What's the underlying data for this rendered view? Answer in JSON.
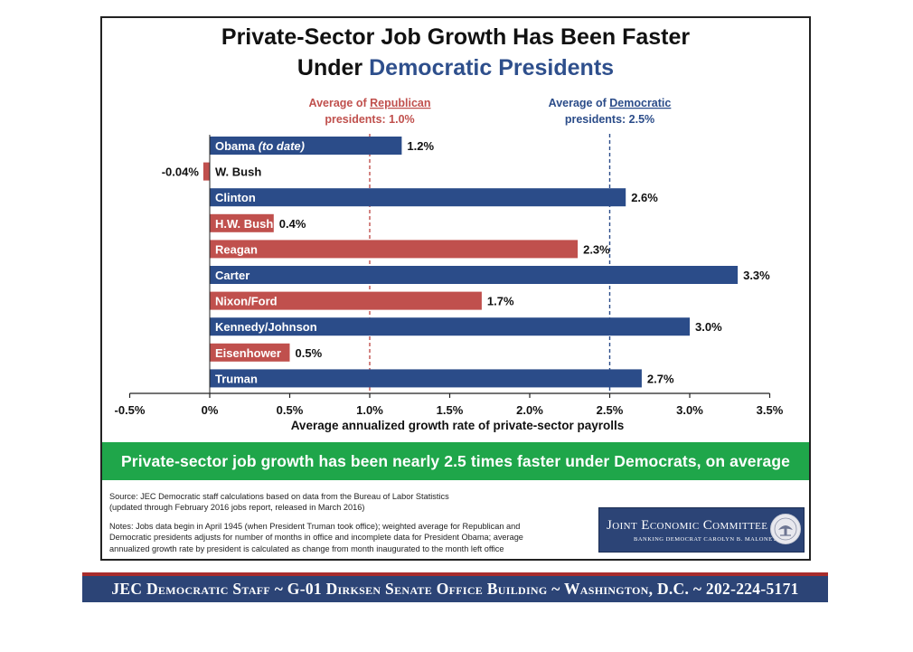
{
  "title": {
    "line1": "Private-Sector Job Growth Has Been Faster",
    "line2_prefix": "Under ",
    "line2_emphasis": "Democratic Presidents"
  },
  "chart_data": {
    "type": "bar",
    "orientation": "horizontal",
    "title": "Private-Sector Job Growth Has Been Faster Under Democratic Presidents",
    "xlabel": "Average annualized growth rate of private-sector payrolls",
    "xlim": [
      -0.5,
      3.5
    ],
    "x_ticks": [
      -0.5,
      0,
      0.5,
      1.0,
      1.5,
      2.0,
      2.5,
      3.0,
      3.5
    ],
    "x_tick_labels": [
      "-0.5%",
      "0%",
      "0.5%",
      "1.0%",
      "1.5%",
      "2.0%",
      "2.5%",
      "3.0%",
      "3.5%"
    ],
    "grid": false,
    "categories": [
      "Obama",
      "W. Bush",
      "Clinton",
      "H.W. Bush",
      "Reagan",
      "Carter",
      "Nixon/Ford",
      "Kennedy/Johnson",
      "Eisenhower",
      "Truman"
    ],
    "bar_labels": [
      "Obama",
      "W. Bush",
      "Clinton",
      "H.W. Bush",
      "Reagan",
      "Carter",
      "Nixon/Ford",
      "Kennedy/Johnson",
      "Eisenhower",
      "Truman"
    ],
    "bar_label_suffix": [
      " (to date)",
      "",
      "",
      "",
      "",
      "",
      "",
      "",
      "",
      ""
    ],
    "values": [
      1.2,
      -0.04,
      2.6,
      0.4,
      2.3,
      3.3,
      1.7,
      3.0,
      0.5,
      2.7
    ],
    "value_labels": [
      "1.2%",
      "-0.04%",
      "2.6%",
      "0.4%",
      "2.3%",
      "3.3%",
      "1.7%",
      "3.0%",
      "0.5%",
      "2.7%"
    ],
    "party": [
      "D",
      "R",
      "D",
      "R",
      "R",
      "D",
      "R",
      "D",
      "R",
      "D"
    ],
    "colors": {
      "D": "#2b4c89",
      "R": "#c0504d"
    },
    "reference_lines": [
      {
        "value": 1.0,
        "party": "R",
        "label_pre": "Average of ",
        "label_underlined": "Republican",
        "label_line2": "presidents: 1.0%",
        "color": "#c0504d"
      },
      {
        "value": 2.5,
        "party": "D",
        "label_pre": "Average of ",
        "label_underlined": "Democratic",
        "label_line2": "presidents: 2.5%",
        "color": "#2b4c89"
      }
    ]
  },
  "banner": "Private-sector job growth has been nearly 2.5 times faster under Democrats, on average",
  "source": {
    "line1": "Source: JEC Democratic staff calculations based on data from the Bureau of Labor Statistics",
    "line2": "(updated through February 2016 jobs report, released in March 2016)"
  },
  "notes": {
    "line1": "Notes: Jobs data begin in April 1945 (when President Truman took office); weighted average for Republican and",
    "line2": "Democratic presidents adjusts for number of months in office and incomplete data for President Obama; average",
    "line3": "annualized growth rate by president is calculated as change from month inaugurated to the month left office"
  },
  "logo": {
    "name": "Joint Economic Committee",
    "subtitle": "BANKING DEMOCRAT CAROLYN B. MALONEY",
    "seal_icon": "jec-seal-icon"
  },
  "footer": "JEC Democratic Staff ~ G-01 Dirksen Senate Office Building ~ Washington, D.C. ~ 202-224-5171"
}
